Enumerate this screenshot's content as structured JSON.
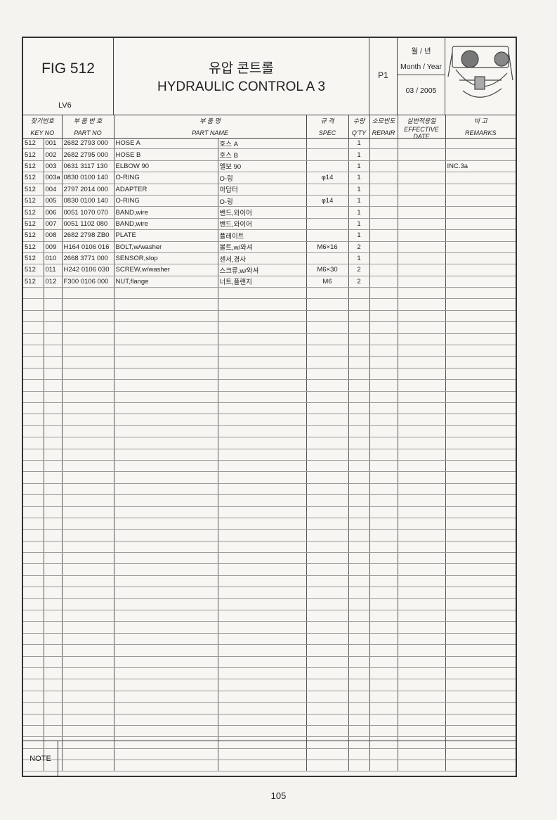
{
  "header": {
    "fig": "FIG 512",
    "model": "LV6",
    "title_kr": "유압 콘트롤",
    "title_en": "HYDRAULIC CONTROL A 3",
    "page_code": "P1",
    "month_year_kr": "월 / 년",
    "month_year_label": "Month / Year",
    "date": "03 / 2005"
  },
  "columns": [
    {
      "kr": "찾기번호",
      "en": "KEY NO"
    },
    {
      "kr": "부 품 번 호",
      "en": "PART NO"
    },
    {
      "kr": "부 품 명",
      "en": "PART NAME"
    },
    {
      "kr": "규 격",
      "en": "SPEC"
    },
    {
      "kr": "수량",
      "en": "Q'TY"
    },
    {
      "kr": "소모빈도",
      "en": "REPAIR"
    },
    {
      "kr": "실번적용일",
      "en": "EFFECTIVE DATE"
    },
    {
      "kr": "비 고",
      "en": "REMARKS"
    }
  ],
  "rows": [
    {
      "fig": "512",
      "key": "001",
      "part": "2682 2793 000",
      "name_en": "HOSE A",
      "name_kr": "호스 A",
      "spec": "",
      "qty": "1",
      "remarks": ""
    },
    {
      "fig": "512",
      "key": "002",
      "part": "2682 2795 000",
      "name_en": "HOSE B",
      "name_kr": "호스 B",
      "spec": "",
      "qty": "1",
      "remarks": ""
    },
    {
      "fig": "512",
      "key": "003",
      "part": "0631 3117 130",
      "name_en": "ELBOW 90",
      "name_kr": "엘보 90",
      "spec": "",
      "qty": "1",
      "remarks": "INC.3a"
    },
    {
      "fig": "512",
      "key": "003a",
      "part": "0830 0100 140",
      "name_en": "O-RING",
      "name_kr": "O-링",
      "spec": "φ14",
      "qty": "1",
      "remarks": ""
    },
    {
      "fig": "512",
      "key": "004",
      "part": "2797 2014 000",
      "name_en": "ADAPTER",
      "name_kr": "아답터",
      "spec": "",
      "qty": "1",
      "remarks": ""
    },
    {
      "fig": "512",
      "key": "005",
      "part": "0830 0100 140",
      "name_en": "O-RING",
      "name_kr": "O-링",
      "spec": "φ14",
      "qty": "1",
      "remarks": ""
    },
    {
      "fig": "512",
      "key": "006",
      "part": "0051 1070 070",
      "name_en": "BAND,wire",
      "name_kr": "밴드,와이어",
      "spec": "",
      "qty": "1",
      "remarks": ""
    },
    {
      "fig": "512",
      "key": "007",
      "part": "0051 1102 080",
      "name_en": "BAND,wire",
      "name_kr": "밴드,와이어",
      "spec": "",
      "qty": "1",
      "remarks": ""
    },
    {
      "fig": "512",
      "key": "008",
      "part": "2682 2798 ZB0",
      "name_en": "PLATE",
      "name_kr": "플레이트",
      "spec": "",
      "qty": "1",
      "remarks": ""
    },
    {
      "fig": "512",
      "key": "009",
      "part": "H164 0106 016",
      "name_en": "BOLT,w/washer",
      "name_kr": "볼트,w/와셔",
      "spec": "M6×16",
      "qty": "2",
      "remarks": ""
    },
    {
      "fig": "512",
      "key": "010",
      "part": "2668 3771 000",
      "name_en": "SENSOR,slop",
      "name_kr": "센서,경사",
      "spec": "",
      "qty": "1",
      "remarks": ""
    },
    {
      "fig": "512",
      "key": "011",
      "part": "H242 0106 030",
      "name_en": "SCREW,w/washer",
      "name_kr": "스크류,w/와셔",
      "spec": "M6×30",
      "qty": "2",
      "remarks": ""
    },
    {
      "fig": "512",
      "key": "012",
      "part": "F300 0106 000",
      "name_en": "NUT,flange",
      "name_kr": "너트,플랜지",
      "spec": "M6",
      "qty": "2",
      "remarks": ""
    }
  ],
  "note_label": "NOTE",
  "page_number": "105"
}
